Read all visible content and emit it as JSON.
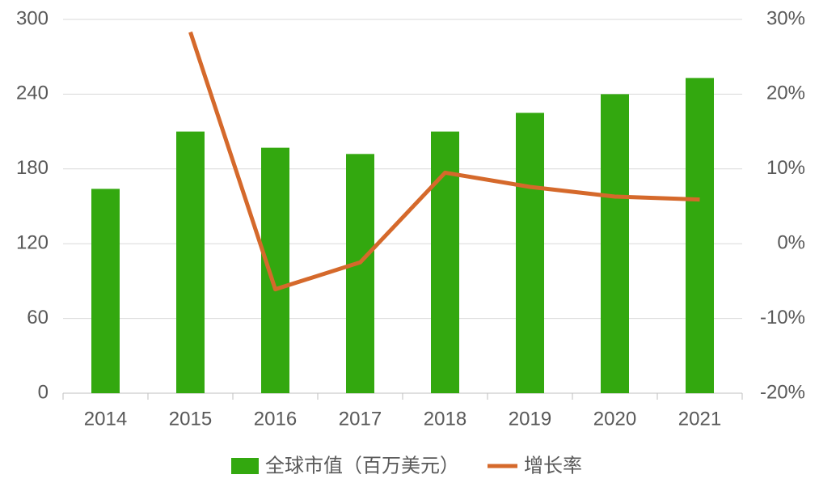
{
  "chart_data": {
    "type": "bar-line",
    "categories": [
      "2014",
      "2015",
      "2016",
      "2017",
      "2018",
      "2019",
      "2020",
      "2021"
    ],
    "series": [
      {
        "name": "全球市值（百万美元）",
        "type": "bar",
        "color": "#33a80f",
        "values": [
          164,
          210,
          197,
          192,
          210,
          225,
          240,
          253
        ]
      },
      {
        "name": "增长率",
        "type": "line",
        "axis": "y2",
        "color": "#d5692b",
        "values": [
          null,
          28.3,
          -6.1,
          -2.5,
          9.5,
          7.6,
          6.3,
          5.9
        ]
      }
    ],
    "ylim": [
      0,
      300
    ],
    "yticks": [
      0,
      60,
      120,
      180,
      240,
      300
    ],
    "y2lim": [
      -20,
      30
    ],
    "y2ticks": [
      {
        "value": -20,
        "label": "-20%"
      },
      {
        "value": -10,
        "label": "-10%"
      },
      {
        "value": 0,
        "label": "0%"
      },
      {
        "value": 10,
        "label": "10%"
      },
      {
        "value": 20,
        "label": "20%"
      },
      {
        "value": 30,
        "label": "30%"
      }
    ],
    "grid": true,
    "legend": "bottom"
  }
}
